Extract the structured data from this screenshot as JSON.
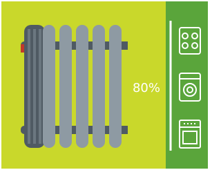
{
  "status": {
    "level": "80%"
  }
}
